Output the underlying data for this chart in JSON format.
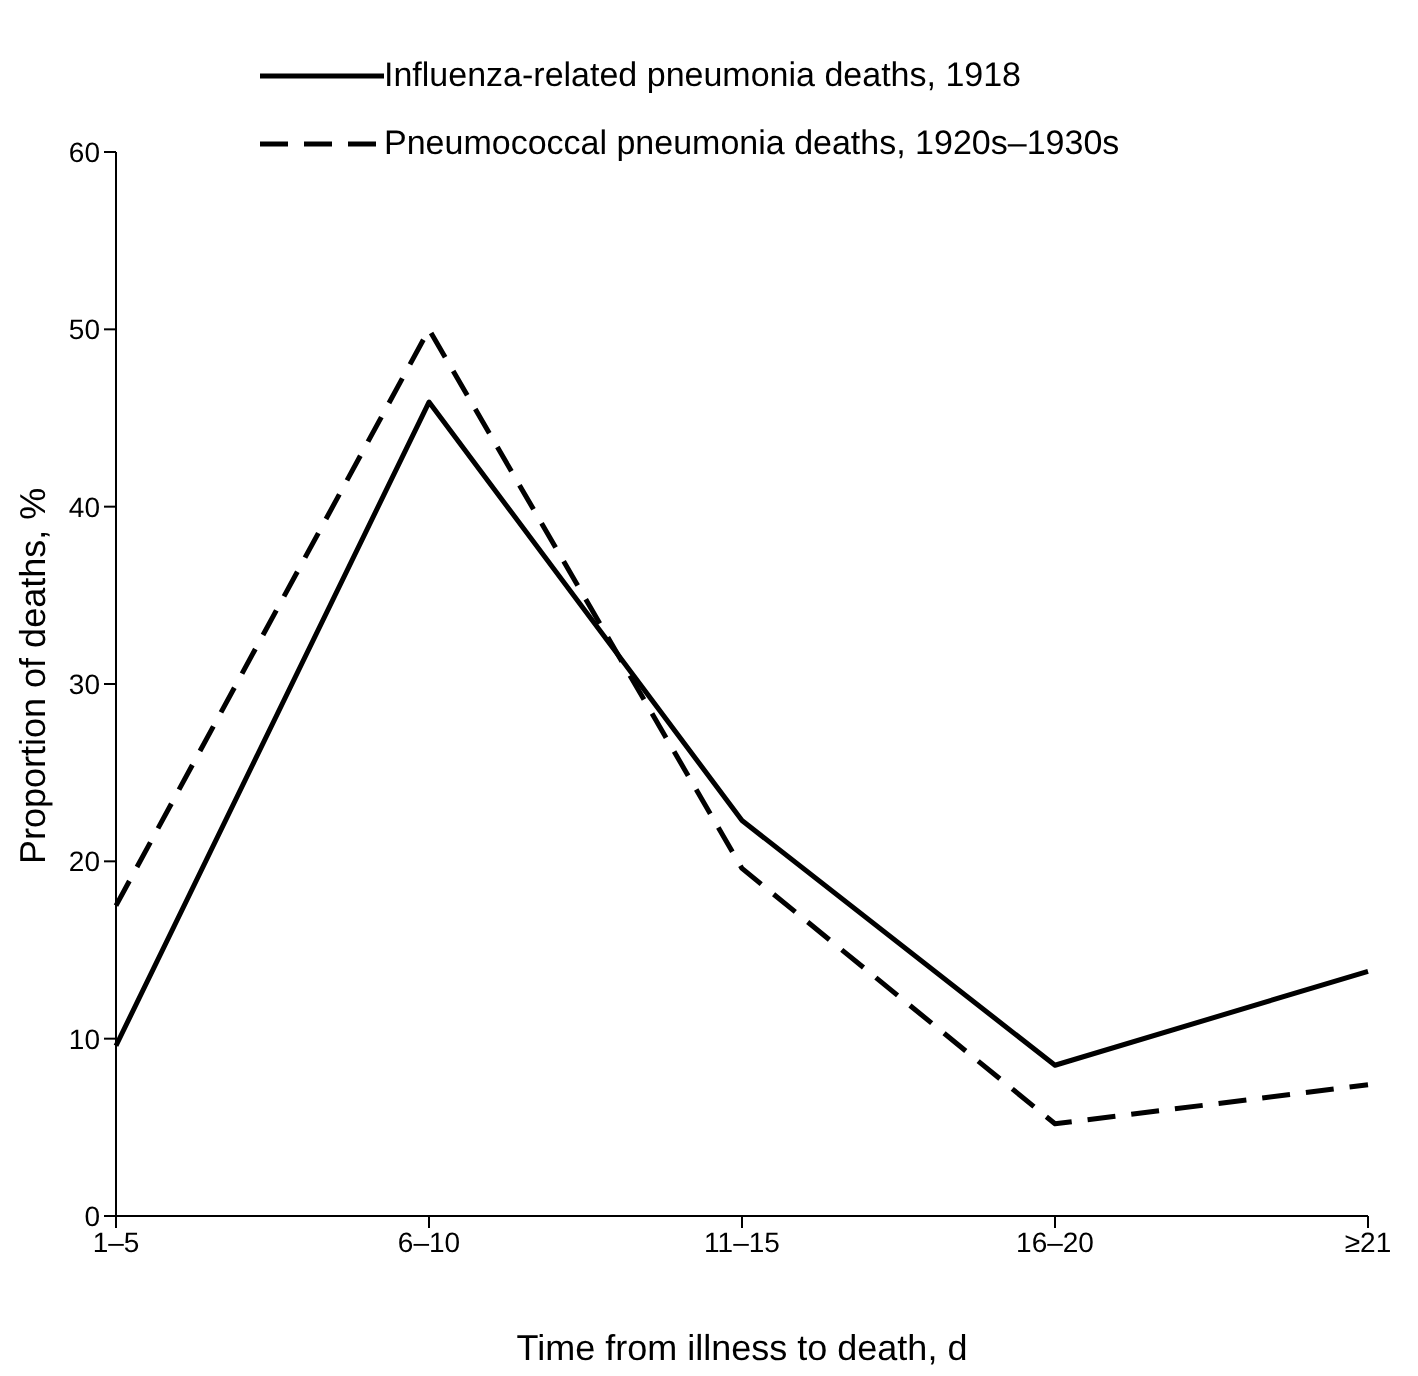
{
  "chart_data": {
    "type": "line",
    "xlabel": "Time from illness to death, d",
    "ylabel": "Proportion of deaths, %",
    "categories": [
      "1–5",
      "6–10",
      "11–15",
      "16–20",
      "≥21"
    ],
    "series": [
      {
        "name": "Influenza-related pneumonia deaths, 1918",
        "color": "#000000",
        "line_style": "solid",
        "values": [
          9.6,
          45.9,
          22.3,
          8.5,
          13.8
        ]
      },
      {
        "name": "Pneumococcal pneumonia deaths, 1920s–1930s",
        "color": "#000000",
        "line_style": "dashed",
        "values": [
          17.5,
          50,
          19.6,
          5.2,
          7.4
        ]
      }
    ],
    "ylim": [
      0,
      60
    ],
    "yticks": [
      0,
      10,
      20,
      30,
      40,
      50,
      60
    ],
    "grid": false,
    "legend": "top",
    "marker": "none"
  }
}
